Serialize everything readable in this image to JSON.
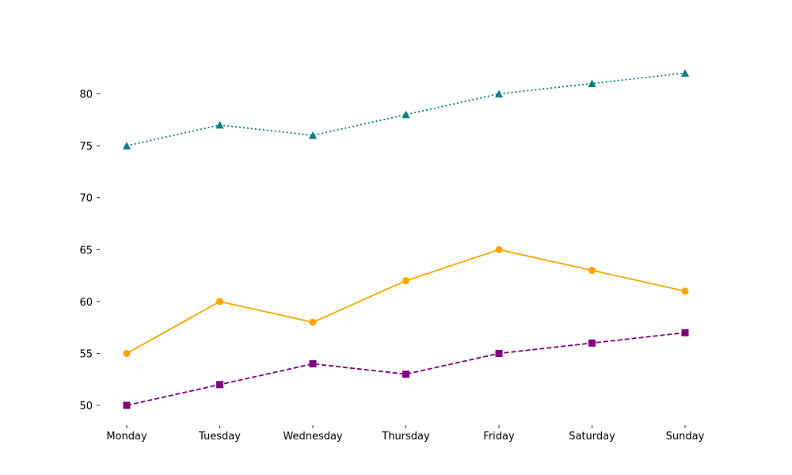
{
  "chart_data": {
    "type": "line",
    "title": "",
    "xlabel": "",
    "ylabel": "",
    "categories": [
      "Monday",
      "Tuesday",
      "Wednesday",
      "Thursday",
      "Friday",
      "Saturday",
      "Sunday"
    ],
    "ylim": [
      48.4,
      85
    ],
    "yticks": [
      50,
      55,
      60,
      65,
      70,
      75,
      80
    ],
    "grid": false,
    "legend": "none",
    "series": [
      {
        "values": [
          55,
          60,
          58,
          62,
          65,
          63,
          61
        ],
        "color": "#FFA500",
        "marker": "circle",
        "line_style": "solid"
      },
      {
        "values": [
          50,
          52,
          54,
          53,
          55,
          56,
          57
        ],
        "color": "#800080",
        "marker": "square",
        "line_style": "dashed"
      },
      {
        "values": [
          75,
          77,
          76,
          78,
          80,
          81,
          82
        ],
        "color": "#008080",
        "marker": "triangle",
        "line_style": "dotted"
      }
    ]
  }
}
